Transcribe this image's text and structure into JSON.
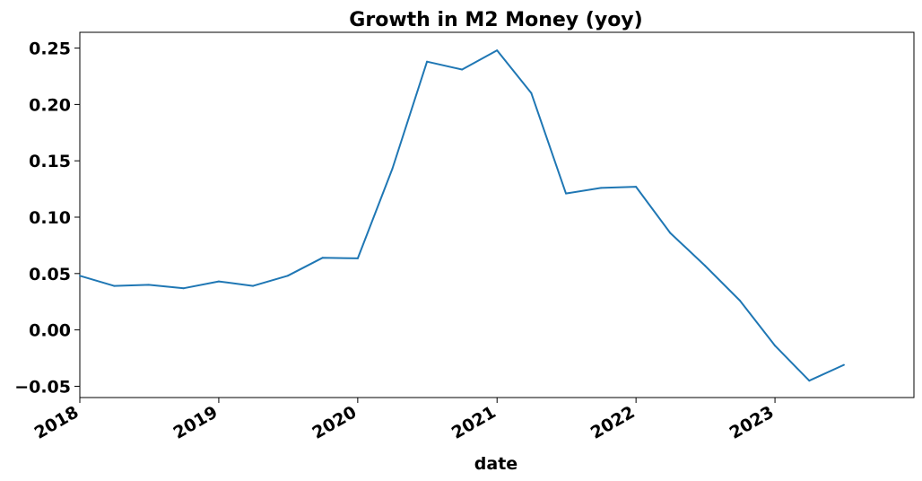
{
  "chart_data": {
    "type": "line",
    "title": "Growth in M2 Money (yoy)",
    "xlabel": "date",
    "ylabel": "",
    "x_ticks": [
      "2018",
      "2019",
      "2020",
      "2021",
      "2022",
      "2023"
    ],
    "y_ticks": [
      "0.25",
      "0.20",
      "0.15",
      "0.10",
      "0.05",
      "0.00",
      "−0.05"
    ],
    "xlim": [
      "2018-01-01",
      "2024-01-01"
    ],
    "ylim": [
      -0.06,
      0.264
    ],
    "grid": false,
    "legend": "none",
    "series": [
      {
        "color": "#1f77b4",
        "points": [
          {
            "x": "2018-01-01",
            "y": 0.048
          },
          {
            "x": "2018-04-01",
            "y": 0.039
          },
          {
            "x": "2018-07-01",
            "y": 0.04
          },
          {
            "x": "2018-10-01",
            "y": 0.037
          },
          {
            "x": "2019-01-01",
            "y": 0.043
          },
          {
            "x": "2019-04-01",
            "y": 0.039
          },
          {
            "x": "2019-07-01",
            "y": 0.048
          },
          {
            "x": "2019-10-01",
            "y": 0.064
          },
          {
            "x": "2020-01-01",
            "y": 0.0635
          },
          {
            "x": "2020-04-01",
            "y": 0.143
          },
          {
            "x": "2020-07-01",
            "y": 0.238
          },
          {
            "x": "2020-10-01",
            "y": 0.231
          },
          {
            "x": "2021-01-01",
            "y": 0.248
          },
          {
            "x": "2021-04-01",
            "y": 0.21
          },
          {
            "x": "2021-07-01",
            "y": 0.121
          },
          {
            "x": "2021-10-01",
            "y": 0.126
          },
          {
            "x": "2022-01-01",
            "y": 0.127
          },
          {
            "x": "2022-04-01",
            "y": 0.086
          },
          {
            "x": "2022-07-01",
            "y": 0.057
          },
          {
            "x": "2022-10-01",
            "y": 0.026
          },
          {
            "x": "2023-01-01",
            "y": -0.014
          },
          {
            "x": "2023-04-01",
            "y": -0.045
          },
          {
            "x": "2023-07-01",
            "y": -0.031
          }
        ]
      }
    ]
  }
}
